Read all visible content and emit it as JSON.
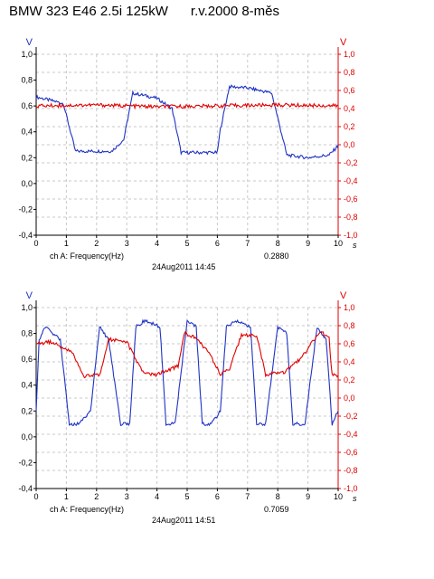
{
  "title": "BMW 323 E46 2.5i 125kW      r.v.2000 8-měs",
  "colors": {
    "left_series": "#1f33c4",
    "right_series": "#e00000",
    "grid": "#c8c8c8",
    "left_axis": "#1f33c4",
    "right_axis": "#e00000"
  },
  "chart_data": [
    {
      "type": "line",
      "title": "",
      "xlabel": "s",
      "left_axis": {
        "unit": "V",
        "ylim": [
          -0.4,
          1.0
        ],
        "ticks": [
          "-0,4",
          "-0,2",
          "0,0",
          "0,2",
          "0,4",
          "0,6",
          "0,8",
          "1,0"
        ]
      },
      "right_axis": {
        "unit": "V",
        "ylim": [
          -1.0,
          1.0
        ],
        "ticks": [
          "-1,0",
          "-0,8",
          "-0,6",
          "-0,4",
          "-0,2",
          "0,0",
          "0,2",
          "0,4",
          "0,6",
          "0,8",
          "1,0"
        ]
      },
      "xlim": [
        0,
        10
      ],
      "x_ticks": [
        "0",
        "1",
        "2",
        "3",
        "4",
        "5",
        "6",
        "7",
        "8",
        "9",
        "10"
      ],
      "grid": true,
      "channel_label": "ch A: Frequency(Hz)",
      "timestamp": "24Aug2011  14:45",
      "readout": "0.2880",
      "series": [
        {
          "axis": "left",
          "color": "#1f33c4",
          "x": [
            0,
            0.9,
            1.3,
            2.5,
            2.9,
            3.2,
            4.0,
            4.5,
            4.8,
            6.0,
            6.1,
            6.4,
            7.0,
            7.8,
            8.3,
            9.0,
            9.7,
            9.95,
            10.0
          ],
          "y": [
            0.67,
            0.62,
            0.25,
            0.25,
            0.34,
            0.7,
            0.66,
            0.58,
            0.24,
            0.24,
            0.42,
            0.75,
            0.74,
            0.7,
            0.22,
            0.2,
            0.22,
            0.28,
            0.3
          ]
        },
        {
          "axis": "right",
          "color": "#e00000",
          "x": [
            0,
            2.0,
            4.0,
            6.0,
            8.0,
            10.0
          ],
          "y": [
            0.43,
            0.44,
            0.42,
            0.43,
            0.44,
            0.43
          ]
        }
      ]
    },
    {
      "type": "line",
      "title": "",
      "xlabel": "s",
      "left_axis": {
        "unit": "V",
        "ylim": [
          -0.4,
          1.0
        ],
        "ticks": [
          "-0,4",
          "-0,2",
          "0,0",
          "0,2",
          "0,4",
          "0,6",
          "0,8",
          "1,0"
        ]
      },
      "right_axis": {
        "unit": "V",
        "ylim": [
          -1.0,
          1.0
        ],
        "ticks": [
          "-1,0",
          "-0,8",
          "-0,6",
          "-0,4",
          "-0,2",
          "0,0",
          "0,2",
          "0,4",
          "0,6",
          "0,8",
          "1,0"
        ]
      },
      "xlim": [
        0,
        10
      ],
      "x_ticks": [
        "0",
        "1",
        "2",
        "3",
        "4",
        "5",
        "6",
        "7",
        "8",
        "9",
        "10"
      ],
      "grid": true,
      "channel_label": "ch A: Frequency(Hz)",
      "timestamp": "24Aug2011  14:51",
      "readout": "0.7059",
      "series": [
        {
          "axis": "left",
          "color": "#1f33c4",
          "x": [
            0,
            0.1,
            0.3,
            0.8,
            1.1,
            1.4,
            1.8,
            2.1,
            2.4,
            2.8,
            3.1,
            3.3,
            3.6,
            4.1,
            4.3,
            4.6,
            5.0,
            5.3,
            5.5,
            5.8,
            6.1,
            6.3,
            6.6,
            7.1,
            7.3,
            7.6,
            8.0,
            8.3,
            8.5,
            8.9,
            9.3,
            9.6,
            9.8,
            10.0
          ],
          "y": [
            0.2,
            0.75,
            0.85,
            0.75,
            0.1,
            0.1,
            0.2,
            0.85,
            0.75,
            0.1,
            0.1,
            0.85,
            0.9,
            0.85,
            0.1,
            0.1,
            0.9,
            0.85,
            0.1,
            0.1,
            0.2,
            0.85,
            0.9,
            0.85,
            0.1,
            0.1,
            0.85,
            0.8,
            0.1,
            0.1,
            0.85,
            0.75,
            0.1,
            0.2
          ]
        },
        {
          "axis": "right",
          "color": "#e00000",
          "x": [
            0,
            0.5,
            1.2,
            1.6,
            2.1,
            2.4,
            3.0,
            3.5,
            3.9,
            4.7,
            4.9,
            5.2,
            5.7,
            6.1,
            6.4,
            6.8,
            7.3,
            7.6,
            8.2,
            8.8,
            9.4,
            9.7,
            9.8,
            10.0
          ],
          "y": [
            0.6,
            0.62,
            0.5,
            0.24,
            0.26,
            0.65,
            0.62,
            0.3,
            0.25,
            0.35,
            0.72,
            0.68,
            0.52,
            0.26,
            0.32,
            0.7,
            0.68,
            0.26,
            0.28,
            0.45,
            0.74,
            0.66,
            0.25,
            0.25
          ]
        }
      ]
    }
  ]
}
